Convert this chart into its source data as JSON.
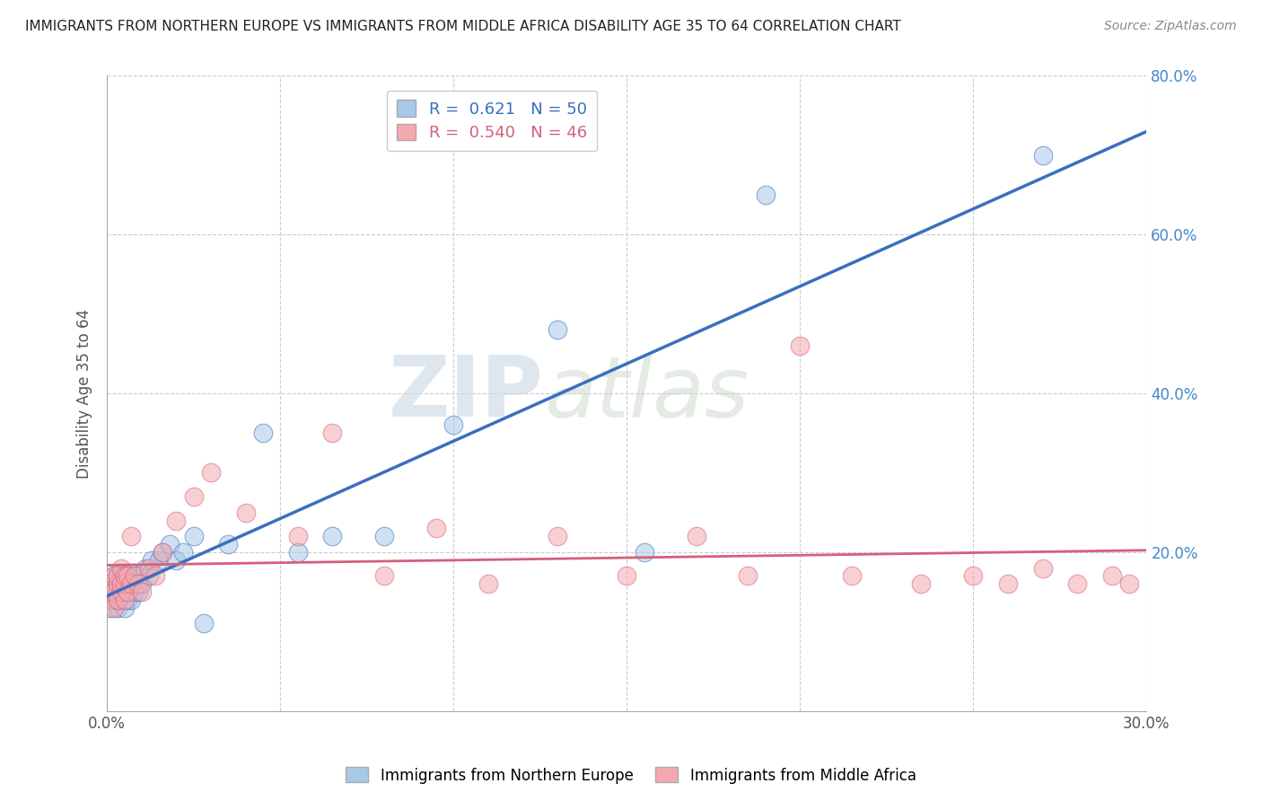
{
  "title": "IMMIGRANTS FROM NORTHERN EUROPE VS IMMIGRANTS FROM MIDDLE AFRICA DISABILITY AGE 35 TO 64 CORRELATION CHART",
  "source": "Source: ZipAtlas.com",
  "ylabel": "Disability Age 35 to 64",
  "xlim": [
    0.0,
    0.3
  ],
  "ylim": [
    0.0,
    0.8
  ],
  "xticks": [
    0.0,
    0.05,
    0.1,
    0.15,
    0.2,
    0.25,
    0.3
  ],
  "yticks": [
    0.0,
    0.2,
    0.4,
    0.6,
    0.8
  ],
  "blue_R": 0.621,
  "blue_N": 50,
  "pink_R": 0.54,
  "pink_N": 46,
  "blue_color": "#a8c8e8",
  "pink_color": "#f4a8b0",
  "blue_line_color": "#3a6fbf",
  "pink_line_color": "#d4607a",
  "watermark_zip": "ZIP",
  "watermark_atlas": "atlas",
  "legend_label_blue": "Immigrants from Northern Europe",
  "legend_label_pink": "Immigrants from Middle Africa",
  "blue_scatter_x": [
    0.001,
    0.001,
    0.001,
    0.002,
    0.002,
    0.002,
    0.002,
    0.003,
    0.003,
    0.003,
    0.003,
    0.003,
    0.004,
    0.004,
    0.004,
    0.004,
    0.005,
    0.005,
    0.005,
    0.005,
    0.006,
    0.006,
    0.006,
    0.007,
    0.007,
    0.008,
    0.008,
    0.009,
    0.009,
    0.01,
    0.011,
    0.012,
    0.013,
    0.015,
    0.016,
    0.018,
    0.02,
    0.022,
    0.025,
    0.028,
    0.035,
    0.045,
    0.055,
    0.065,
    0.08,
    0.1,
    0.13,
    0.155,
    0.19,
    0.27
  ],
  "blue_scatter_y": [
    0.13,
    0.15,
    0.16,
    0.14,
    0.15,
    0.16,
    0.17,
    0.13,
    0.14,
    0.15,
    0.16,
    0.17,
    0.14,
    0.15,
    0.16,
    0.17,
    0.13,
    0.15,
    0.16,
    0.17,
    0.14,
    0.16,
    0.17,
    0.14,
    0.16,
    0.15,
    0.17,
    0.15,
    0.17,
    0.16,
    0.18,
    0.17,
    0.19,
    0.19,
    0.2,
    0.21,
    0.19,
    0.2,
    0.22,
    0.11,
    0.21,
    0.35,
    0.2,
    0.22,
    0.22,
    0.36,
    0.48,
    0.2,
    0.65,
    0.7
  ],
  "pink_scatter_x": [
    0.001,
    0.001,
    0.002,
    0.002,
    0.002,
    0.003,
    0.003,
    0.003,
    0.004,
    0.004,
    0.004,
    0.005,
    0.005,
    0.005,
    0.006,
    0.006,
    0.007,
    0.007,
    0.008,
    0.009,
    0.01,
    0.012,
    0.014,
    0.016,
    0.02,
    0.025,
    0.03,
    0.04,
    0.055,
    0.065,
    0.08,
    0.095,
    0.11,
    0.13,
    0.15,
    0.17,
    0.185,
    0.2,
    0.215,
    0.235,
    0.25,
    0.26,
    0.27,
    0.28,
    0.29,
    0.295
  ],
  "pink_scatter_y": [
    0.14,
    0.16,
    0.13,
    0.15,
    0.17,
    0.14,
    0.16,
    0.17,
    0.15,
    0.16,
    0.18,
    0.14,
    0.16,
    0.17,
    0.15,
    0.17,
    0.22,
    0.16,
    0.17,
    0.16,
    0.15,
    0.18,
    0.17,
    0.2,
    0.24,
    0.27,
    0.3,
    0.25,
    0.22,
    0.35,
    0.17,
    0.23,
    0.16,
    0.22,
    0.17,
    0.22,
    0.17,
    0.46,
    0.17,
    0.16,
    0.17,
    0.16,
    0.18,
    0.16,
    0.17,
    0.16
  ]
}
